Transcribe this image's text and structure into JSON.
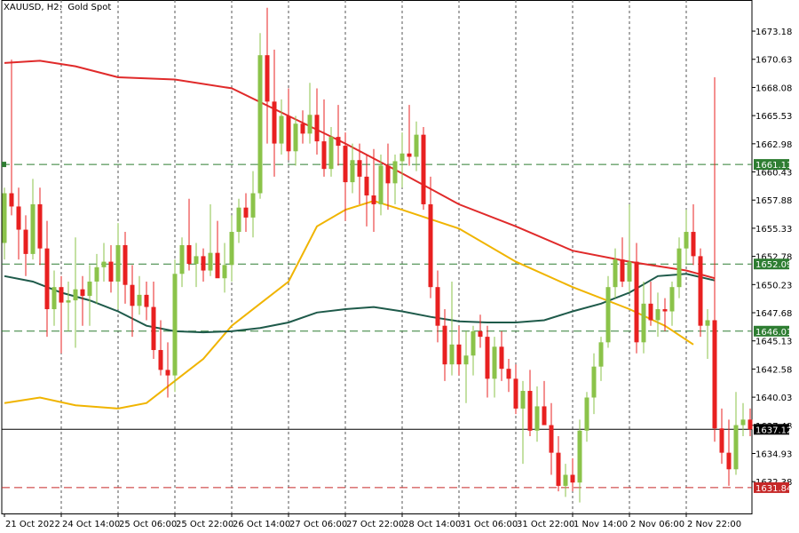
{
  "chart_data": {
    "type": "candlestick",
    "title": "XAUUSD, H2:  Gold Spot",
    "symbol": "XAUUSD",
    "timeframe": "H2",
    "description": "Gold Spot",
    "ylim": [
      1629.5,
      1676.0
    ],
    "y_axis_ticks": [
      "1673.18",
      "1670.63",
      "1668.08",
      "1665.53",
      "1662.98",
      "1660.43",
      "1657.88",
      "1655.33",
      "1652.78",
      "1650.23",
      "1647.68",
      "1645.13",
      "1642.58",
      "1640.03",
      "1637.48",
      "1634.93",
      "1632.38"
    ],
    "x_axis_labels": [
      "21 Oct 2022",
      "24 Oct 14:00",
      "25 Oct 06:00",
      "25 Oct 22:00",
      "26 Oct 14:00",
      "27 Oct 06:00",
      "27 Oct 22:00",
      "28 Oct 14:00",
      "31 Oct 06:00",
      "31 Oct 22:00",
      "1 Nov 14:00",
      "2 Nov 06:00",
      "2 Nov 22:00"
    ],
    "x_axis_label_bars": [
      0,
      8,
      16,
      24,
      32,
      40,
      48,
      56,
      64,
      72,
      80,
      88,
      96
    ],
    "grid": true,
    "colors": {
      "bull": "#8bc34a",
      "bear": "#e82020",
      "ma_red": "#e02a2a",
      "ma_yellow": "#f0b400",
      "ma_dark": "#1e5a4a",
      "level_green": "#2e7d32",
      "level_red": "#c62828",
      "current_price": "#000000"
    },
    "levels": [
      {
        "price": 1661.11,
        "label": "1661.11",
        "color": "#2e7d32",
        "style": "dashed"
      },
      {
        "price": 1652.09,
        "label": "1652.09",
        "color": "#2e7d32",
        "style": "dashed"
      },
      {
        "price": 1646.01,
        "label": "1646.01",
        "color": "#2e7d32",
        "style": "dashed"
      },
      {
        "price": 1631.84,
        "label": "1631.84",
        "color": "#c62828",
        "style": "dashed"
      },
      {
        "price": 1637.12,
        "label": "1637.12",
        "color": "#000000",
        "style": "solid"
      }
    ],
    "candles": [
      [
        1654.0,
        1659.0,
        1652.5,
        1658.5
      ],
      [
        1658.5,
        1670.6,
        1656.5,
        1657.3
      ],
      [
        1657.3,
        1659.0,
        1652.5,
        1655.2
      ],
      [
        1655.2,
        1656.5,
        1651.0,
        1653.0
      ],
      [
        1653.0,
        1659.8,
        1652.5,
        1657.5
      ],
      [
        1657.5,
        1659.0,
        1652.0,
        1653.5
      ],
      [
        1653.5,
        1656.0,
        1645.5,
        1648.0
      ],
      [
        1648.0,
        1651.5,
        1646.5,
        1650.0
      ],
      [
        1650.0,
        1651.0,
        1644.0,
        1648.6
      ],
      [
        1648.6,
        1650.5,
        1646.0,
        1648.8
      ],
      [
        1648.8,
        1654.5,
        1644.5,
        1649.8
      ],
      [
        1649.8,
        1651.0,
        1646.5,
        1649.2
      ],
      [
        1649.2,
        1652.0,
        1646.5,
        1650.5
      ],
      [
        1650.5,
        1653.0,
        1648.5,
        1651.8
      ],
      [
        1651.8,
        1654.0,
        1650.5,
        1652.3
      ],
      [
        1652.3,
        1653.8,
        1649.5,
        1650.5
      ],
      [
        1650.5,
        1655.8,
        1648.0,
        1653.8
      ],
      [
        1653.8,
        1655.0,
        1648.5,
        1650.2
      ],
      [
        1650.2,
        1652.0,
        1645.5,
        1648.3
      ],
      [
        1648.3,
        1651.0,
        1647.5,
        1649.3
      ],
      [
        1649.3,
        1650.5,
        1647.0,
        1648.2
      ],
      [
        1648.2,
        1650.5,
        1643.5,
        1644.3
      ],
      [
        1644.3,
        1647.0,
        1642.0,
        1642.5
      ],
      [
        1642.5,
        1645.0,
        1640.0,
        1642.0
      ],
      [
        1642.0,
        1652.5,
        1640.5,
        1651.2
      ],
      [
        1651.2,
        1654.5,
        1650.0,
        1653.8
      ],
      [
        1653.8,
        1658.0,
        1651.5,
        1652.1
      ],
      [
        1652.1,
        1654.0,
        1650.0,
        1652.8
      ],
      [
        1652.8,
        1653.5,
        1650.5,
        1651.5
      ],
      [
        1651.5,
        1657.5,
        1651.0,
        1653.1
      ],
      [
        1653.1,
        1656.0,
        1651.0,
        1650.8
      ],
      [
        1650.8,
        1654.0,
        1649.5,
        1652.0
      ],
      [
        1652.0,
        1656.5,
        1650.5,
        1655.0
      ],
      [
        1655.0,
        1658.0,
        1654.0,
        1657.2
      ],
      [
        1657.2,
        1658.5,
        1655.0,
        1656.3
      ],
      [
        1656.3,
        1660.5,
        1654.5,
        1658.5
      ],
      [
        1658.5,
        1673.0,
        1658.0,
        1671.0
      ],
      [
        1671.0,
        1675.3,
        1663.0,
        1666.8
      ],
      [
        1666.8,
        1671.5,
        1660.0,
        1663.0
      ],
      [
        1663.0,
        1667.0,
        1662.0,
        1665.5
      ],
      [
        1665.5,
        1668.0,
        1661.5,
        1662.3
      ],
      [
        1662.3,
        1665.5,
        1661.0,
        1664.8
      ],
      [
        1664.8,
        1666.0,
        1663.0,
        1663.9
      ],
      [
        1663.9,
        1668.5,
        1663.0,
        1665.6
      ],
      [
        1665.6,
        1668.0,
        1662.0,
        1663.2
      ],
      [
        1663.2,
        1667.0,
        1660.0,
        1660.7
      ],
      [
        1660.7,
        1664.5,
        1660.0,
        1663.6
      ],
      [
        1663.6,
        1666.5,
        1661.0,
        1662.8
      ],
      [
        1662.8,
        1664.0,
        1656.0,
        1659.5
      ],
      [
        1659.5,
        1663.0,
        1658.5,
        1661.5
      ],
      [
        1661.5,
        1663.0,
        1657.5,
        1660.0
      ],
      [
        1660.0,
        1662.0,
        1655.5,
        1658.3
      ],
      [
        1658.3,
        1662.5,
        1655.0,
        1657.5
      ],
      [
        1657.5,
        1662.0,
        1656.5,
        1661.0
      ],
      [
        1661.0,
        1663.0,
        1657.0,
        1659.4
      ],
      [
        1659.4,
        1662.0,
        1657.5,
        1661.4
      ],
      [
        1661.4,
        1664.0,
        1659.0,
        1662.1
      ],
      [
        1662.1,
        1666.5,
        1661.0,
        1661.8
      ],
      [
        1661.8,
        1665.0,
        1660.5,
        1663.8
      ],
      [
        1663.8,
        1664.5,
        1657.0,
        1657.5
      ],
      [
        1657.5,
        1660.0,
        1649.0,
        1650.0
      ],
      [
        1650.0,
        1651.5,
        1645.0,
        1646.5
      ],
      [
        1646.5,
        1648.0,
        1641.5,
        1643.0
      ],
      [
        1643.0,
        1650.5,
        1642.0,
        1644.8
      ],
      [
        1644.8,
        1646.5,
        1642.0,
        1643.0
      ],
      [
        1643.0,
        1646.0,
        1639.5,
        1643.8
      ],
      [
        1643.8,
        1646.5,
        1642.0,
        1646.0
      ],
      [
        1646.0,
        1647.5,
        1644.5,
        1645.5
      ],
      [
        1645.5,
        1646.5,
        1640.0,
        1641.7
      ],
      [
        1641.7,
        1645.5,
        1640.0,
        1644.6
      ],
      [
        1644.6,
        1646.0,
        1641.5,
        1642.6
      ],
      [
        1642.6,
        1643.5,
        1640.5,
        1641.7
      ],
      [
        1641.7,
        1643.0,
        1638.5,
        1639.0
      ],
      [
        1639.0,
        1641.5,
        1634.0,
        1640.6
      ],
      [
        1640.6,
        1642.5,
        1636.5,
        1637.0
      ],
      [
        1637.0,
        1641.0,
        1636.0,
        1639.2
      ],
      [
        1639.2,
        1641.5,
        1637.5,
        1637.5
      ],
      [
        1637.5,
        1639.5,
        1633.0,
        1635.0
      ],
      [
        1635.0,
        1636.5,
        1631.5,
        1632.0
      ],
      [
        1632.0,
        1634.0,
        1631.0,
        1633.0
      ],
      [
        1633.0,
        1634.5,
        1631.5,
        1632.3
      ],
      [
        1632.3,
        1638.0,
        1630.5,
        1637.0
      ],
      [
        1637.0,
        1640.5,
        1636.0,
        1640.0
      ],
      [
        1640.0,
        1644.0,
        1638.5,
        1642.8
      ],
      [
        1642.8,
        1645.5,
        1641.5,
        1645.0
      ],
      [
        1645.0,
        1651.0,
        1644.5,
        1650.0
      ],
      [
        1650.0,
        1653.5,
        1649.0,
        1652.5
      ],
      [
        1652.5,
        1654.5,
        1650.0,
        1650.5
      ],
      [
        1650.5,
        1657.5,
        1649.5,
        1652.3
      ],
      [
        1652.3,
        1654.0,
        1644.0,
        1645.0
      ],
      [
        1645.0,
        1650.5,
        1644.0,
        1648.5
      ],
      [
        1648.5,
        1650.5,
        1646.5,
        1647.0
      ],
      [
        1647.0,
        1649.5,
        1645.5,
        1648.0
      ],
      [
        1648.0,
        1649.0,
        1646.0,
        1647.8
      ],
      [
        1647.8,
        1650.5,
        1646.5,
        1650.0
      ],
      [
        1650.0,
        1654.5,
        1649.0,
        1653.5
      ],
      [
        1653.5,
        1657.0,
        1652.0,
        1655.0
      ],
      [
        1655.0,
        1657.5,
        1652.0,
        1652.8
      ],
      [
        1652.8,
        1653.5,
        1645.5,
        1646.5
      ],
      [
        1646.5,
        1648.0,
        1643.5,
        1647.0
      ],
      [
        1647.0,
        1669.0,
        1636.0,
        1637.2
      ],
      [
        1637.2,
        1639.0,
        1634.0,
        1635.0
      ],
      [
        1635.0,
        1638.0,
        1632.0,
        1633.5
      ],
      [
        1633.5,
        1640.5,
        1633.0,
        1637.5
      ],
      [
        1637.5,
        1639.5,
        1636.5,
        1638.0
      ],
      [
        1638.0,
        1639.0,
        1636.5,
        1637.12
      ]
    ],
    "moving_averages": [
      {
        "color": "#e02a2a",
        "points": [
          [
            0,
            1670.3
          ],
          [
            5,
            1670.5
          ],
          [
            10,
            1670.0
          ],
          [
            16,
            1669.0
          ],
          [
            24,
            1668.8
          ],
          [
            32,
            1668.0
          ],
          [
            40,
            1665.5
          ],
          [
            48,
            1663.0
          ],
          [
            56,
            1660.3
          ],
          [
            64,
            1657.5
          ],
          [
            72,
            1655.5
          ],
          [
            80,
            1653.3
          ],
          [
            88,
            1652.3
          ],
          [
            96,
            1651.5
          ],
          [
            100,
            1650.8
          ]
        ]
      },
      {
        "color": "#f0b400",
        "points": [
          [
            0,
            1639.5
          ],
          [
            5,
            1640.0
          ],
          [
            10,
            1639.3
          ],
          [
            16,
            1639.0
          ],
          [
            20,
            1639.5
          ],
          [
            24,
            1641.5
          ],
          [
            28,
            1643.5
          ],
          [
            32,
            1646.5
          ],
          [
            36,
            1648.5
          ],
          [
            40,
            1650.5
          ],
          [
            44,
            1655.5
          ],
          [
            48,
            1657.0
          ],
          [
            52,
            1657.8
          ],
          [
            56,
            1657.0
          ],
          [
            64,
            1655.3
          ],
          [
            72,
            1652.3
          ],
          [
            80,
            1650.0
          ],
          [
            88,
            1648.0
          ],
          [
            93,
            1646.5
          ],
          [
            97,
            1644.8
          ]
        ]
      },
      {
        "color": "#1e5a4a",
        "points": [
          [
            0,
            1651.0
          ],
          [
            4,
            1650.5
          ],
          [
            8,
            1649.5
          ],
          [
            12,
            1648.8
          ],
          [
            16,
            1647.8
          ],
          [
            20,
            1646.5
          ],
          [
            24,
            1646.0
          ],
          [
            28,
            1645.9
          ],
          [
            32,
            1646.0
          ],
          [
            36,
            1646.3
          ],
          [
            40,
            1646.8
          ],
          [
            44,
            1647.7
          ],
          [
            48,
            1648.0
          ],
          [
            52,
            1648.2
          ],
          [
            56,
            1647.8
          ],
          [
            60,
            1647.3
          ],
          [
            64,
            1646.9
          ],
          [
            68,
            1646.8
          ],
          [
            72,
            1646.8
          ],
          [
            76,
            1647.0
          ],
          [
            80,
            1647.8
          ],
          [
            84,
            1648.5
          ],
          [
            88,
            1649.5
          ],
          [
            92,
            1651.0
          ],
          [
            96,
            1651.2
          ],
          [
            100,
            1650.6
          ]
        ]
      }
    ]
  }
}
